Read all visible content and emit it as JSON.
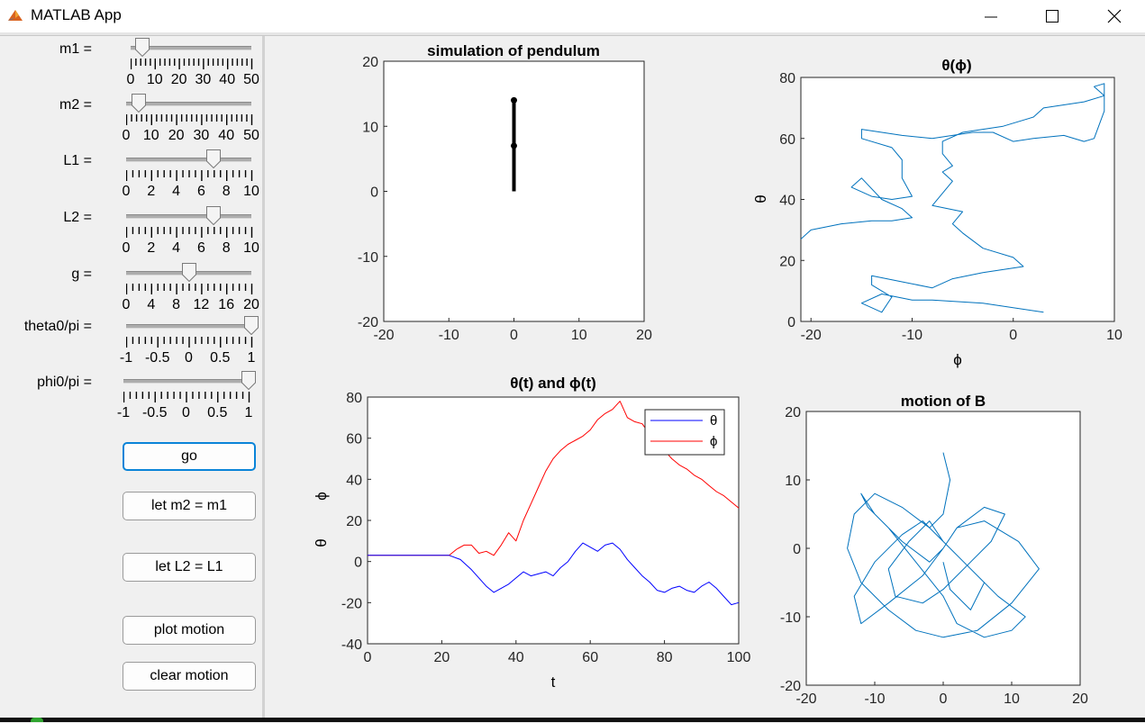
{
  "window": {
    "title": "MATLAB App",
    "minimize_label": "minimize",
    "maximize_label": "maximize",
    "close_label": "close"
  },
  "sliders": [
    {
      "label": "m1 =",
      "min": 0,
      "max": 50,
      "value": 5,
      "ticks": [
        "0",
        "10",
        "20",
        "30",
        "40",
        "50"
      ],
      "minor_per_major": 5
    },
    {
      "label": "m2 =",
      "min": 0,
      "max": 50,
      "value": 5,
      "ticks": [
        "0",
        "10",
        "20",
        "30",
        "40",
        "50"
      ],
      "minor_per_major": 5
    },
    {
      "label": "L1 =",
      "min": 0,
      "max": 10,
      "value": 7,
      "ticks": [
        "0",
        "2",
        "4",
        "6",
        "8",
        "10"
      ],
      "minor_per_major": 4
    },
    {
      "label": "L2 =",
      "min": 0,
      "max": 10,
      "value": 7,
      "ticks": [
        "0",
        "2",
        "4",
        "6",
        "8",
        "10"
      ],
      "minor_per_major": 4
    },
    {
      "label": "g =",
      "min": 0,
      "max": 20,
      "value": 10,
      "ticks": [
        "0",
        "4",
        "8",
        "12",
        "16",
        "20"
      ],
      "minor_per_major": 4
    },
    {
      "label": "theta0/pi =",
      "min": -1,
      "max": 1,
      "value": 1,
      "ticks": [
        "-1",
        "-0.5",
        "0",
        "0.5",
        "1"
      ],
      "minor_per_major": 5
    },
    {
      "label": "phi0/pi =",
      "min": -1,
      "max": 1,
      "value": 1,
      "ticks": [
        "-1",
        "-0.5",
        "0",
        "0.5",
        "1"
      ],
      "minor_per_major": 5
    }
  ],
  "buttons": {
    "go": "go",
    "let_m2": "let m2 = m1",
    "let_l2": "let L2 = L1",
    "plot_motion": "plot motion",
    "clear_motion": "clear motion"
  },
  "plots": {
    "pendulum": {
      "title": "simulation of pendulum",
      "xticks": [
        "-20",
        "-10",
        "0",
        "10",
        "20"
      ],
      "yticks": [
        "-20",
        "-10",
        "0",
        "10",
        "20"
      ]
    },
    "theta_phi": {
      "title": "θ(ϕ)",
      "xlabel": "ϕ",
      "ylabel": "θ",
      "xticks": [
        "-20",
        "-10",
        "0",
        "10"
      ],
      "yticks": [
        "0",
        "20",
        "40",
        "60",
        "80"
      ]
    },
    "time": {
      "title": "θ(t)  and  ϕ(t)",
      "xlabel": "t",
      "ylabel_theta": "θ",
      "ylabel_phi": "ϕ",
      "legend_theta": "θ",
      "legend_phi": "ϕ",
      "xticks": [
        "0",
        "20",
        "40",
        "60",
        "80",
        "100"
      ],
      "yticks": [
        "-40",
        "-20",
        "0",
        "20",
        "40",
        "60",
        "80"
      ]
    },
    "motion": {
      "title": "motion of B",
      "xticks": [
        "-20",
        "-10",
        "0",
        "10",
        "20"
      ],
      "yticks": [
        "-20",
        "-10",
        "0",
        "10",
        "20"
      ]
    }
  },
  "chart_data": [
    {
      "type": "line",
      "title": "simulation of pendulum",
      "xlim": [
        -20,
        20
      ],
      "ylim": [
        -20,
        20
      ],
      "series": [
        {
          "x": [
            0,
            0,
            0
          ],
          "y": [
            0,
            7,
            14
          ]
        }
      ]
    },
    {
      "type": "line",
      "title": "θ(ϕ)",
      "xlabel": "ϕ",
      "ylabel": "θ",
      "xlim": [
        -21,
        10
      ],
      "ylim": [
        0,
        80
      ],
      "series": [
        {
          "x": [
            3,
            -3,
            -8,
            -10,
            -13,
            -15,
            -13,
            -12,
            -14,
            -14,
            -11,
            -8,
            -6,
            -3,
            1,
            0,
            -3,
            -5,
            -6,
            -5,
            -8,
            -7,
            -6,
            -7,
            -6,
            -7,
            -7,
            -5,
            -1,
            2,
            3,
            7,
            9,
            8,
            9,
            9,
            8,
            7,
            5,
            2,
            0,
            -2,
            -4,
            -8,
            -11,
            -15,
            -15,
            -12,
            -11,
            -11,
            -11,
            -10,
            -12,
            -14,
            -16,
            -15,
            -13,
            -11,
            -10,
            -12,
            -14,
            -17,
            -20,
            -21
          ],
          "y": [
            3,
            6,
            7,
            7,
            9,
            6,
            3,
            8,
            12,
            15,
            13,
            11,
            14,
            16,
            18,
            21,
            24,
            29,
            32,
            36,
            38,
            42,
            46,
            49,
            51,
            55,
            59,
            62,
            64,
            67,
            70,
            72,
            74,
            77,
            78,
            69,
            60,
            59,
            61,
            60,
            59,
            62,
            62,
            60,
            61,
            63,
            60,
            57,
            53,
            50,
            47,
            41,
            40,
            41,
            44,
            47,
            40,
            37,
            34,
            33,
            33,
            32,
            30,
            27
          ]
        }
      ]
    },
    {
      "type": "line",
      "title": "θ(t)  and  ϕ(t)",
      "xlabel": "t",
      "xlim": [
        0,
        100
      ],
      "ylim": [
        -40,
        80
      ],
      "series": [
        {
          "name": "θ",
          "x": [
            0,
            10,
            22,
            25,
            28,
            30,
            32,
            34,
            36,
            38,
            40,
            42,
            44,
            46,
            48,
            50,
            52,
            54,
            56,
            58,
            60,
            62,
            64,
            66,
            68,
            70,
            72,
            74,
            76,
            78,
            80,
            82,
            84,
            86,
            88,
            90,
            92,
            94,
            96,
            98,
            100
          ],
          "y": [
            3,
            3,
            3,
            1,
            -4,
            -8,
            -12,
            -15,
            -13,
            -11,
            -8,
            -5,
            -7,
            -6,
            -5,
            -7,
            -3,
            0,
            5,
            9,
            7,
            5,
            8,
            9,
            6,
            1,
            -3,
            -7,
            -10,
            -14,
            -15,
            -13,
            -12,
            -14,
            -15,
            -12,
            -10,
            -13,
            -17,
            -21,
            -20
          ]
        },
        {
          "name": "ϕ",
          "x": [
            0,
            10,
            22,
            24,
            26,
            28,
            30,
            32,
            34,
            36,
            38,
            40,
            42,
            44,
            46,
            48,
            50,
            52,
            54,
            56,
            58,
            60,
            62,
            64,
            66,
            68,
            70,
            72,
            74,
            76,
            78,
            80,
            82,
            84,
            86,
            88,
            90,
            92,
            94,
            96,
            98,
            100
          ],
          "y": [
            3,
            3,
            3,
            6,
            8,
            8,
            4,
            5,
            3,
            8,
            14,
            10,
            20,
            28,
            36,
            44,
            50,
            54,
            57,
            59,
            61,
            64,
            69,
            72,
            74,
            78,
            70,
            68,
            67,
            62,
            58,
            54,
            50,
            47,
            45,
            42,
            40,
            37,
            34,
            32,
            29,
            26
          ]
        }
      ]
    },
    {
      "type": "line",
      "title": "motion of B",
      "xlim": [
        -20,
        20
      ],
      "ylim": [
        -20,
        20
      ],
      "series": [
        {
          "x": [
            0,
            1,
            0,
            -2,
            -6,
            -10,
            -13,
            -14,
            -12,
            -8,
            -4,
            0,
            5,
            10,
            14,
            11,
            6,
            2,
            0,
            -3,
            -8,
            -12,
            -13,
            -10,
            -6,
            -3,
            0,
            4,
            8,
            12,
            10,
            6,
            2,
            0,
            -4,
            -8,
            -11,
            -12,
            -10,
            -6,
            -2,
            0,
            2,
            6,
            9,
            7,
            3,
            0,
            -3,
            -7,
            -8,
            -5,
            -2,
            0,
            3,
            6,
            4,
            1,
            0
          ],
          "y": [
            14,
            10,
            5,
            3,
            6,
            8,
            5,
            0,
            -5,
            -9,
            -12,
            -13,
            -12,
            -8,
            -3,
            1,
            4,
            3,
            0,
            -4,
            -8,
            -11,
            -7,
            -2,
            2,
            4,
            1,
            -3,
            -7,
            -10,
            -12,
            -13,
            -11,
            -7,
            -2,
            3,
            6,
            8,
            5,
            1,
            -2,
            0,
            3,
            6,
            5,
            1,
            -3,
            -6,
            -8,
            -7,
            -3,
            1,
            4,
            1,
            -2,
            -5,
            -9,
            -6,
            -2
          ]
        }
      ]
    }
  ]
}
